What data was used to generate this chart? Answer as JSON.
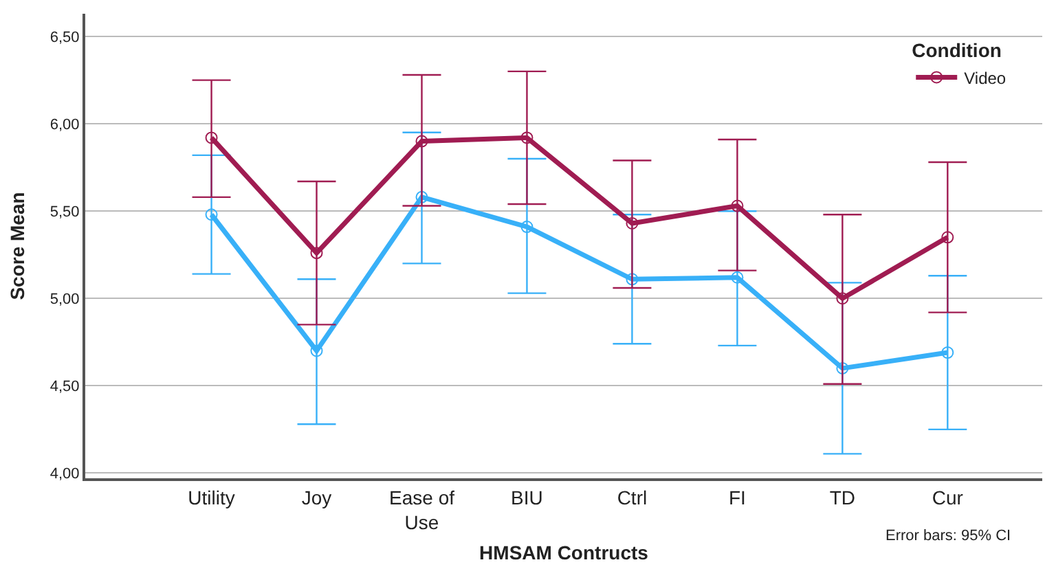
{
  "chart_data": {
    "type": "line",
    "xlabel": "HMSAM Contructs",
    "ylabel": "Score Mean",
    "legend_title": "Condition",
    "categories": [
      "Utility",
      "Joy",
      "Ease of\nUse",
      "BIU",
      "Ctrl",
      "FI",
      "TD",
      "Cur"
    ],
    "series": [
      {
        "color": "#38b0f8",
        "values": [
          5.48,
          4.7,
          5.58,
          5.41,
          5.11,
          5.12,
          4.6,
          4.69
        ],
        "errors": [
          [
            5.14,
            5.82
          ],
          [
            4.28,
            5.11
          ],
          [
            5.2,
            5.95
          ],
          [
            5.03,
            5.8
          ],
          [
            4.74,
            5.48
          ],
          [
            4.73,
            5.5
          ],
          [
            4.11,
            5.09
          ],
          [
            4.25,
            5.13
          ]
        ]
      },
      {
        "name": "Video",
        "color": "#a01c52",
        "values": [
          5.92,
          5.26,
          5.9,
          5.92,
          5.43,
          5.53,
          5.0,
          5.35
        ],
        "errors": [
          [
            5.58,
            6.25
          ],
          [
            4.85,
            5.67
          ],
          [
            5.53,
            6.28
          ],
          [
            5.54,
            6.3
          ],
          [
            5.06,
            5.79
          ],
          [
            5.16,
            5.91
          ],
          [
            4.51,
            5.48
          ],
          [
            4.92,
            5.78
          ]
        ]
      }
    ],
    "ylim": [
      3.97,
      6.63
    ],
    "yticks": [
      {
        "value": 4.0,
        "label": "4,00"
      },
      {
        "value": 4.5,
        "label": "4,50"
      },
      {
        "value": 5.0,
        "label": "5,00"
      },
      {
        "value": 5.5,
        "label": "5,50"
      },
      {
        "value": 6.0,
        "label": "6,00"
      },
      {
        "value": 6.5,
        "label": "6,50"
      }
    ],
    "grid": "y",
    "legend": "top right",
    "marker": "circle",
    "line_style": "solid",
    "annotations": [
      "Error bars: 95% CI"
    ]
  }
}
